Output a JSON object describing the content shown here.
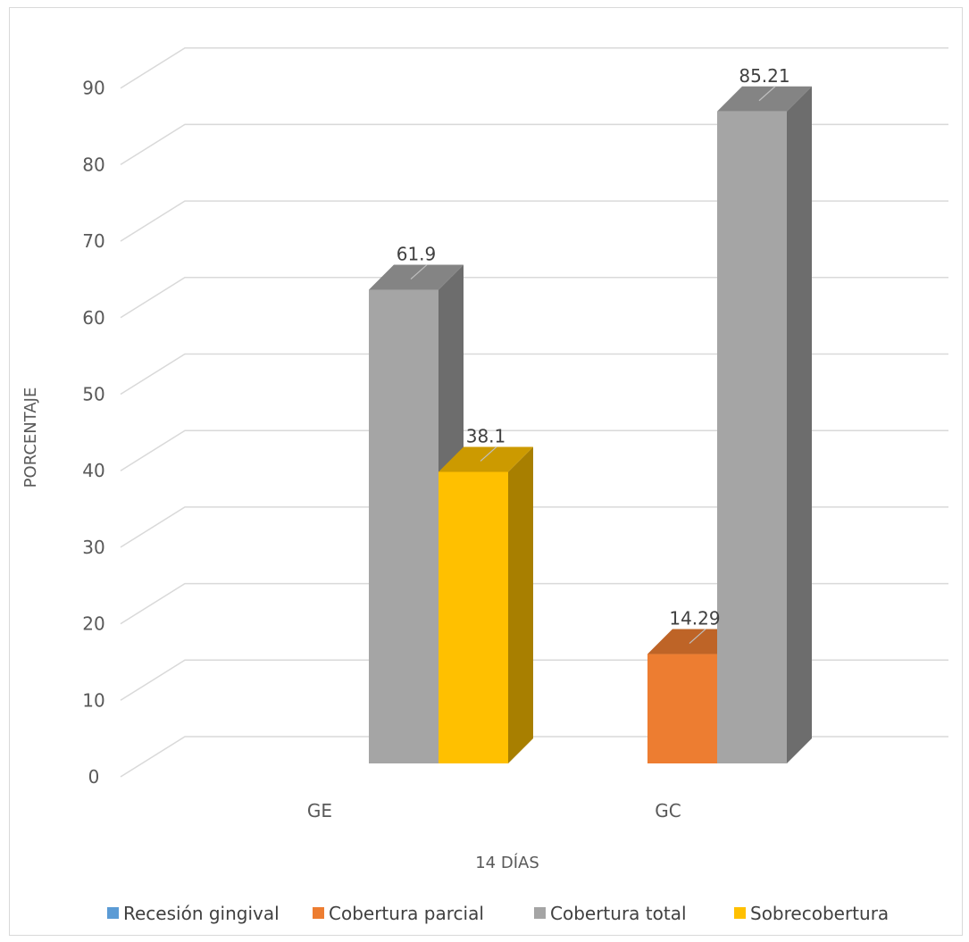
{
  "chart_data": {
    "type": "bar",
    "style": "3d-clustered-column",
    "title": "",
    "xlabel": "14 DÍAS",
    "ylabel": "PORCENTAJE",
    "ylim": [
      0,
      90
    ],
    "yticks": [
      0,
      10,
      20,
      30,
      40,
      50,
      60,
      70,
      80,
      90
    ],
    "grid": true,
    "legend": "bottom",
    "categories": [
      "GE",
      "GC"
    ],
    "series": [
      {
        "name": "Recesión gingival",
        "color": "#5b9bd5",
        "values": [
          0,
          0
        ],
        "labels": [
          null,
          null
        ]
      },
      {
        "name": "Cobertura parcial",
        "color": "#ed7d31",
        "values": [
          0,
          14.29
        ],
        "labels": [
          null,
          "14.29"
        ]
      },
      {
        "name": "Cobertura total",
        "color": "#a5a5a5",
        "values": [
          61.9,
          85.21
        ],
        "labels": [
          "61.9",
          "85.21"
        ]
      },
      {
        "name": "Sobrecobertura",
        "color": "#ffc000",
        "values": [
          38.1,
          0
        ],
        "labels": [
          "38.1",
          null
        ]
      }
    ]
  }
}
